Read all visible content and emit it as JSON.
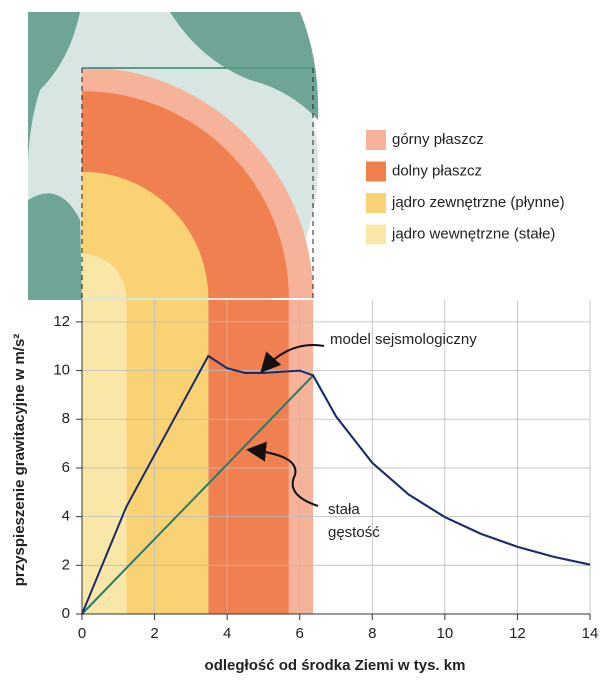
{
  "chart_data": {
    "type": "line",
    "x_label": "odległość od środka Ziemi w tys. km",
    "y_label": "przyspieszenie grawitacyjne w m/s²",
    "xlim": [
      0,
      14
    ],
    "ylim": [
      0,
      12.9
    ],
    "xticks": [
      0,
      2,
      4,
      6,
      8,
      10,
      12,
      14
    ],
    "yticks": [
      0,
      2,
      4,
      6,
      8,
      10,
      12
    ],
    "grid": true,
    "x": [
      0,
      1.22,
      3.48,
      4,
      4.5,
      5,
      5.5,
      6,
      6.37,
      7,
      8,
      9,
      10,
      11,
      12,
      13,
      14
    ],
    "series": [
      {
        "name": "model sejsmologiczny",
        "color": "#1b2a6b",
        "values": [
          0,
          4.4,
          10.6,
          10.1,
          9.9,
          9.9,
          9.95,
          10.0,
          9.8,
          8.12,
          6.21,
          4.91,
          3.98,
          3.29,
          2.76,
          2.35,
          2.03
        ]
      },
      {
        "name": "stała gęstość",
        "color": "#2a7a6a",
        "values": [
          0,
          1.88,
          5.35,
          6.15,
          6.92,
          7.69,
          8.46,
          9.23,
          9.8,
          8.12,
          6.21,
          4.91,
          3.98,
          3.29,
          2.76,
          2.35,
          2.03
        ]
      }
    ],
    "annotations": [
      "model sejsmologiczny",
      "stała",
      "gęstość"
    ],
    "layers": [
      {
        "name": "górny płaszcz",
        "color": "#f7b39a",
        "range": [
          5.7,
          6.37
        ]
      },
      {
        "name": "dolny płaszcz",
        "color": "#f08050",
        "range": [
          3.48,
          5.7
        ]
      },
      {
        "name": "jądro zewnętrzne (płynne)",
        "color": "#f9d273",
        "range": [
          1.22,
          3.48
        ]
      },
      {
        "name": "jądro wewnętrzne (stałe)",
        "color": "#f9e7a8",
        "range": [
          0,
          1.22
        ]
      }
    ]
  }
}
